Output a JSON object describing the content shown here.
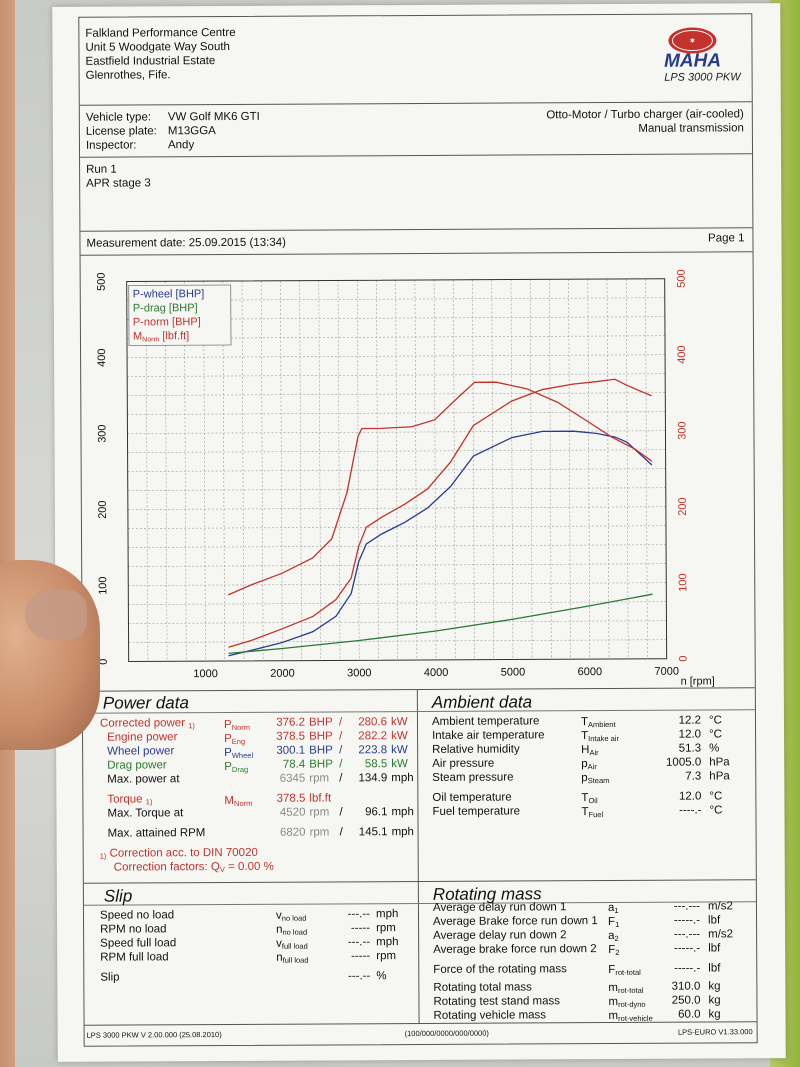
{
  "header": {
    "company": "Falkland Performance Centre",
    "address1": "Unit 5 Woodgate Way South",
    "address2": "Eastfield Industrial Estate",
    "address3": "Glenrothes, Fife.",
    "brand": "MAHA",
    "model": "LPS 3000 PKW"
  },
  "vehicle": {
    "type_label": "Vehicle type:",
    "type_value": "VW Golf MK6 GTI",
    "plate_label": "License plate:",
    "plate_value": "M13GGA",
    "inspector_label": "Inspector:",
    "inspector_value": "Andy",
    "engine": "Otto-Motor / Turbo charger (air-cooled)",
    "transmission": "Manual transmission"
  },
  "run": {
    "line1": "Run 1",
    "line2": "APR stage 3"
  },
  "measurement": {
    "date_text": "Measurement date: 25.09.2015 (13:34)",
    "page": "Page 1"
  },
  "chart_data": {
    "type": "line",
    "xlabel": "n [rpm]",
    "x_ticks": [
      "1000",
      "2000",
      "3000",
      "4000",
      "5000",
      "6000",
      "7000"
    ],
    "y_left_ticks": [
      "0",
      "100",
      "200",
      "300",
      "400",
      "500"
    ],
    "y_right_ticks": [
      "0",
      "100",
      "200",
      "300",
      "400",
      "500"
    ],
    "xlim": [
      0,
      7000
    ],
    "ylim": [
      0,
      500
    ],
    "grid": true,
    "legend_position": "top-left",
    "legend": [
      {
        "label": "P-wheel [BHP]",
        "color": "#2a3b8f"
      },
      {
        "label": "P-drag [BHP]",
        "color": "#2c7a31"
      },
      {
        "label": "P-norm [BHP]",
        "color": "#c3322c"
      },
      {
        "label": "M",
        "sub": "Norm",
        "suffix": " [lbf.ft]",
        "color": "#c3322c"
      }
    ],
    "series": [
      {
        "name": "P-wheel [BHP]",
        "color": "#2a3b8f",
        "x": [
          1300,
          1600,
          2000,
          2400,
          2700,
          2900,
          3000,
          3100,
          3300,
          3600,
          3900,
          4200,
          4500,
          5000,
          5400,
          5800,
          6100,
          6345,
          6500,
          6820
        ],
        "y": [
          7,
          14,
          24,
          38,
          58,
          88,
          130,
          153,
          166,
          181,
          200,
          228,
          268,
          292,
          300,
          300,
          297,
          292,
          285,
          255
        ]
      },
      {
        "name": "P-drag [BHP]",
        "color": "#2c7a31",
        "x": [
          1300,
          2000,
          3000,
          4000,
          5000,
          6000,
          6820
        ],
        "y": [
          10,
          16,
          26,
          38,
          53,
          70,
          85
        ]
      },
      {
        "name": "P-norm [BHP]",
        "color": "#c3322c",
        "x": [
          1300,
          1600,
          2000,
          2400,
          2700,
          2900,
          3000,
          3100,
          3300,
          3600,
          3900,
          4200,
          4500,
          5000,
          5400,
          5800,
          6100,
          6345,
          6500,
          6820
        ],
        "y": [
          18,
          27,
          42,
          58,
          80,
          108,
          150,
          175,
          188,
          205,
          225,
          260,
          308,
          340,
          355,
          362,
          365,
          368,
          360,
          346
        ]
      },
      {
        "name": "M Norm [lbf.ft]",
        "color": "#c3322c",
        "x": [
          1300,
          1600,
          2000,
          2400,
          2650,
          2850,
          3000,
          3050,
          3300,
          3700,
          4000,
          4300,
          4520,
          4800,
          5200,
          5600,
          6000,
          6300,
          6600,
          6820
        ],
        "y": [
          87,
          100,
          115,
          135,
          160,
          220,
          295,
          305,
          305,
          307,
          316,
          345,
          365,
          365,
          356,
          338,
          312,
          292,
          276,
          260
        ]
      }
    ]
  },
  "power": {
    "title": "Power data",
    "corrected": {
      "label": "Corrected power",
      "mark": "1)",
      "sym": "P",
      "sub": "Norm",
      "v1": "376.2",
      "u1": "BHP",
      "v2": "280.6",
      "u2": "kW"
    },
    "engine": {
      "label": "Engine power",
      "sym": "P",
      "sub": "Eng",
      "v1": "378.5",
      "u1": "BHP",
      "v2": "282.2",
      "u2": "kW"
    },
    "wheel": {
      "label": "Wheel power",
      "sym": "P",
      "sub": "Wheel",
      "v1": "300.1",
      "u1": "BHP",
      "v2": "223.8",
      "u2": "kW"
    },
    "drag": {
      "label": "Drag power",
      "sym": "P",
      "sub": "Drag",
      "v1": "78.4",
      "u1": "BHP",
      "v2": "58.5",
      "u2": "kW"
    },
    "maxpower": {
      "label": "Max. power at",
      "v1": "6345",
      "u1": "rpm",
      "v2": "134.9",
      "u2": "mph"
    },
    "torque": {
      "label": "Torque",
      "mark": "1)",
      "sym": "M",
      "sub": "Norm",
      "v1": "378.5",
      "u1": "lbf.ft"
    },
    "maxtorque": {
      "label": "Max. Torque at",
      "v1": "4520",
      "u1": "rpm",
      "v2": "96.1",
      "u2": "mph"
    },
    "maxrpm": {
      "label": "Max. attained RPM",
      "v1": "6820",
      "u1": "rpm",
      "v2": "145.1",
      "u2": "mph"
    },
    "note1_mark": "1)",
    "note1": "Correction acc. to DIN 70020",
    "note2": "Correction factors: Q",
    "note2_sub": "V",
    "note2_val": "=   0.00 %",
    "slash": "/"
  },
  "ambient": {
    "title": "Ambient data",
    "rows": [
      {
        "label": "Ambient temperature",
        "sym": "T",
        "sub": "Ambient",
        "val": "12.2",
        "unit": "°C"
      },
      {
        "label": "Intake air temperature",
        "sym": "T",
        "sub": "Intake air",
        "val": "12.0",
        "unit": "°C"
      },
      {
        "label": "Relative humidity",
        "sym": "H",
        "sub": "Air",
        "val": "51.3",
        "unit": "%"
      },
      {
        "label": "Air pressure",
        "sym": "p",
        "sub": "Air",
        "val": "1005.0",
        "unit": "hPa"
      },
      {
        "label": "Steam pressure",
        "sym": "p",
        "sub": "Steam",
        "val": "7.3",
        "unit": "hPa"
      },
      {
        "label": "Oil temperature",
        "sym": "T",
        "sub": "Oil",
        "val": "12.0",
        "unit": "°C"
      },
      {
        "label": "Fuel temperature",
        "sym": "T",
        "sub": "Fuel",
        "val": "----.-",
        "unit": "°C"
      }
    ]
  },
  "slip": {
    "title": "Slip",
    "rows": [
      {
        "label": "Speed no load",
        "sym": "v",
        "sub": "no load",
        "val": "---.--",
        "unit": "mph"
      },
      {
        "label": "RPM no load",
        "sym": "n",
        "sub": "no load",
        "val": "-----",
        "unit": "rpm"
      },
      {
        "label": "Speed full load",
        "sym": "v",
        "sub": "full load",
        "val": "---.--",
        "unit": "mph"
      },
      {
        "label": "RPM full load",
        "sym": "n",
        "sub": "full load",
        "val": "-----",
        "unit": "rpm"
      },
      {
        "label": "Slip",
        "sym": "",
        "sub": "",
        "val": "---.--",
        "unit": "%"
      }
    ]
  },
  "rotating": {
    "title": "Rotating mass",
    "rows": [
      {
        "label": "Average delay run down 1",
        "sym": "a",
        "sub": "1",
        "val": "---.---",
        "unit": "m/s2"
      },
      {
        "label": "Average Brake force run down 1",
        "sym": "F",
        "sub": "1",
        "val": "-----.-",
        "unit": "lbf"
      },
      {
        "label": "Average delay run down 2",
        "sym": "a",
        "sub": "2",
        "val": "---.---",
        "unit": "m/s2"
      },
      {
        "label": "Average brake force run down 2",
        "sym": "F",
        "sub": "2",
        "val": "-----.-",
        "unit": "lbf"
      },
      {
        "label": "Force of the rotating mass",
        "sym": "F",
        "sub": "rot-total",
        "val": "-----.-",
        "unit": "lbf"
      },
      {
        "label": "Rotating total mass",
        "sym": "m",
        "sub": "rot-total",
        "val": "310.0",
        "unit": "kg"
      },
      {
        "label": "Rotating test stand mass",
        "sym": "m",
        "sub": "rot-dyno",
        "val": "250.0",
        "unit": "kg"
      },
      {
        "label": "Rotating vehicle mass",
        "sym": "m",
        "sub": "rot-vehicle",
        "val": "60.0",
        "unit": "kg"
      }
    ]
  },
  "footer": {
    "left": "LPS 3000 PKW V 2.00.000 (25.08.2010)",
    "center": "(100/000/0000/000/0000)",
    "right": "LPS-EURO V1.33.000"
  }
}
